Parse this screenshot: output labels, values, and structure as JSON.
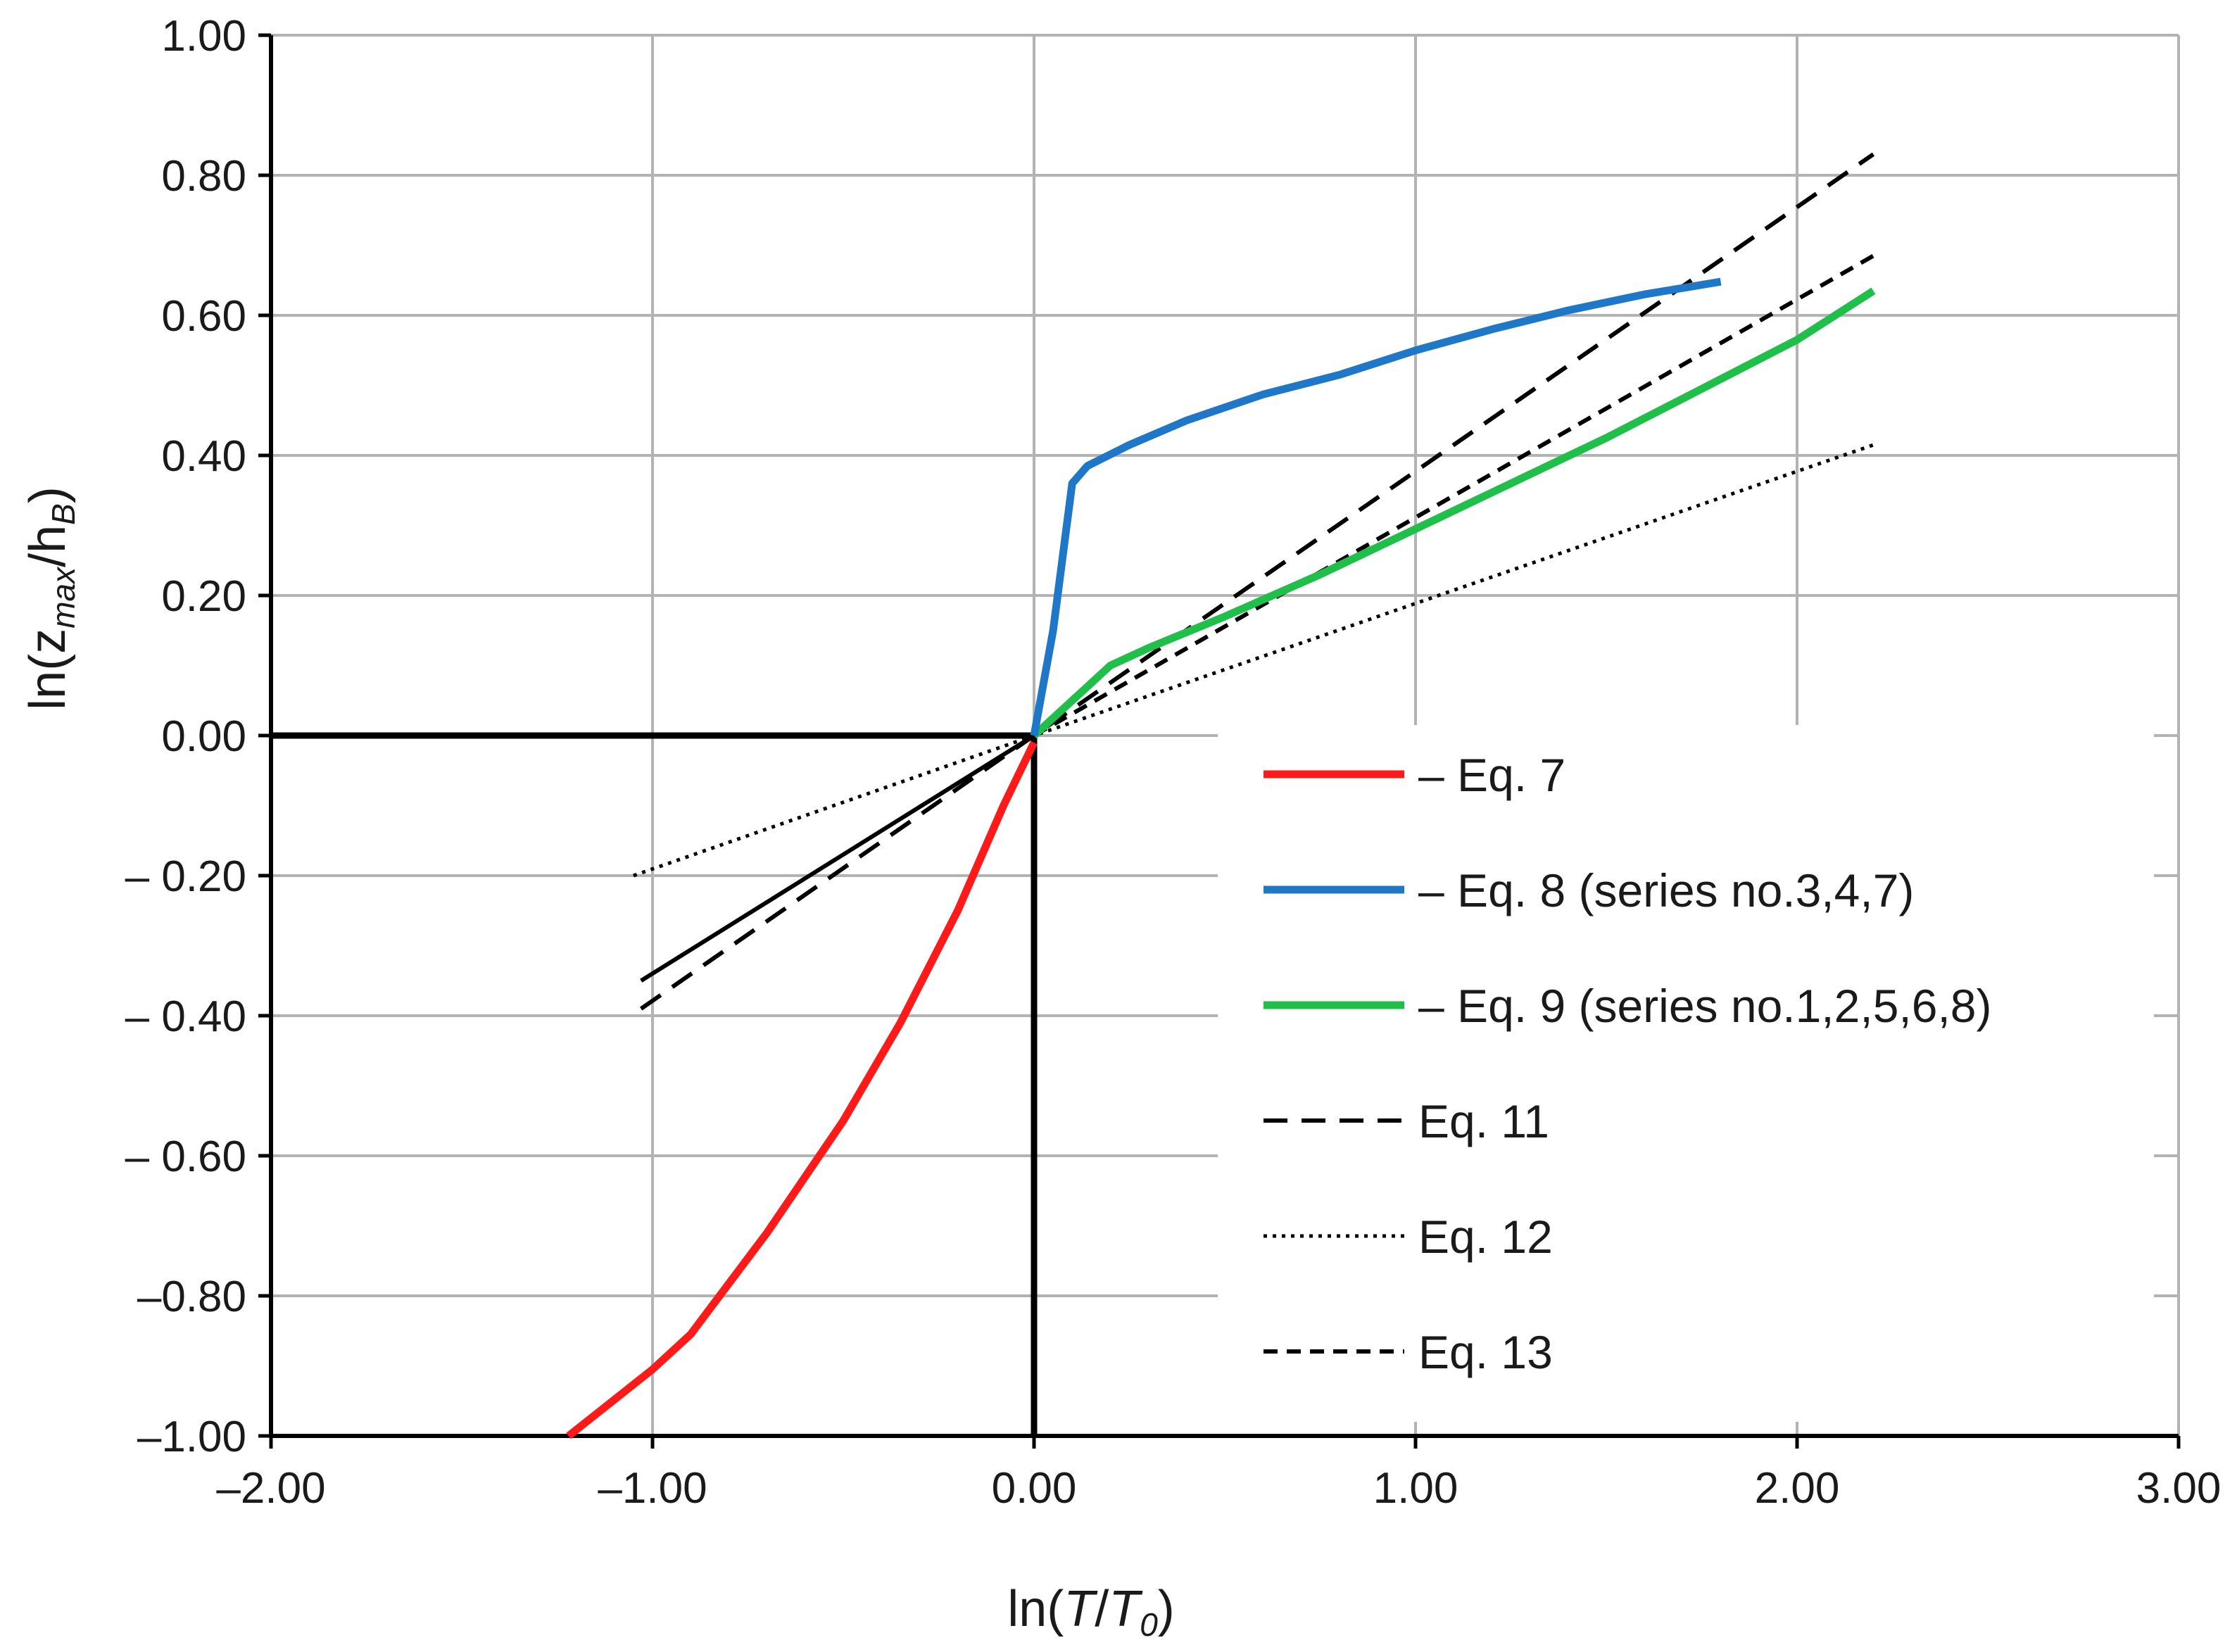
{
  "chart_data": {
    "type": "line",
    "title": "",
    "xlabel": {
      "prefix": "ln(",
      "var1": "T",
      "slash": "/",
      "var2": "T",
      "sub2": "0",
      "suffix": ")"
    },
    "ylabel": {
      "prefix": "ln(z",
      "sub1": "max",
      "slash": "/h",
      "sub2": "B",
      "suffix": ")"
    },
    "xlim": [
      -2,
      3
    ],
    "ylim": [
      -1,
      1
    ],
    "x_ticks": [
      -2,
      -1,
      0,
      1,
      2,
      3
    ],
    "y_ticks": [
      1,
      0.8,
      0.6,
      0.4,
      0.2,
      0,
      -0.2,
      -0.4,
      -0.6,
      -0.8,
      -1
    ],
    "x_tick_labels": [
      "–2.00",
      "–1.00",
      "0.00",
      "1.00",
      "2.00",
      "3.00"
    ],
    "y_tick_labels": [
      "1.00",
      "0.80",
      "0.60",
      "0.40",
      "0.20",
      "0.00",
      "– 0.20",
      "– 0.40",
      "– 0.60",
      "–0.80",
      "–1.00"
    ],
    "grid": true,
    "legend_position": "lower-right",
    "colors": {
      "eq7": "#ff1a1a",
      "eq8": "#1f77c8",
      "eq9": "#1fbf4a",
      "black": "#000000",
      "grid": "#b3b3b3"
    },
    "series": [
      {
        "name": "– Eq. 7",
        "style": "solid-thick",
        "color": "#ff1a1a",
        "points": [
          [
            -1.22,
            -1.0
          ],
          [
            -1.0,
            -0.905
          ],
          [
            -0.9,
            -0.855
          ],
          [
            -0.7,
            -0.71
          ],
          [
            -0.5,
            -0.55
          ],
          [
            -0.35,
            -0.41
          ],
          [
            -0.2,
            -0.25
          ],
          [
            -0.08,
            -0.1
          ],
          [
            0.0,
            -0.01
          ]
        ]
      },
      {
        "name": "– Eq. 8 (series no.3,4,7)",
        "style": "solid-thick",
        "color": "#1f77c8",
        "points": [
          [
            0.0,
            0.0
          ],
          [
            0.05,
            0.15
          ],
          [
            0.1,
            0.36
          ],
          [
            0.14,
            0.385
          ],
          [
            0.25,
            0.415
          ],
          [
            0.4,
            0.45
          ],
          [
            0.6,
            0.487
          ],
          [
            0.8,
            0.515
          ],
          [
            1.0,
            0.55
          ],
          [
            1.2,
            0.58
          ],
          [
            1.4,
            0.607
          ],
          [
            1.6,
            0.63
          ],
          [
            1.8,
            0.648
          ]
        ]
      },
      {
        "name": "– Eq. 9 (series no.1,2,5,6,8)",
        "style": "solid-thick",
        "color": "#1fbf4a",
        "points": [
          [
            0.0,
            0.0
          ],
          [
            0.1,
            0.05
          ],
          [
            0.2,
            0.1
          ],
          [
            0.3,
            0.125
          ],
          [
            0.5,
            0.17
          ],
          [
            0.75,
            0.23
          ],
          [
            1.0,
            0.295
          ],
          [
            1.25,
            0.36
          ],
          [
            1.5,
            0.425
          ],
          [
            1.75,
            0.495
          ],
          [
            2.0,
            0.565
          ],
          [
            2.2,
            0.635
          ]
        ]
      },
      {
        "name": "Eq. 11",
        "style": "long-dash",
        "color": "#000000",
        "points": [
          [
            -1.03,
            -0.39
          ],
          [
            0.0,
            0.0
          ],
          [
            2.2,
            0.83
          ]
        ]
      },
      {
        "name": "Eq. 12",
        "style": "dotted",
        "color": "#000000",
        "points": [
          [
            -1.05,
            -0.2
          ],
          [
            0.0,
            0.0
          ],
          [
            2.2,
            0.415
          ]
        ]
      },
      {
        "name": "Eq. 13",
        "style": "short-dash",
        "color": "#000000",
        "points": [
          [
            0.0,
            0.0
          ],
          [
            2.2,
            0.685
          ]
        ]
      },
      {
        "name": "",
        "style": "solid-thin",
        "color": "#000000",
        "points": [
          [
            -1.03,
            -0.35
          ],
          [
            0.0,
            0.0
          ]
        ]
      }
    ]
  }
}
